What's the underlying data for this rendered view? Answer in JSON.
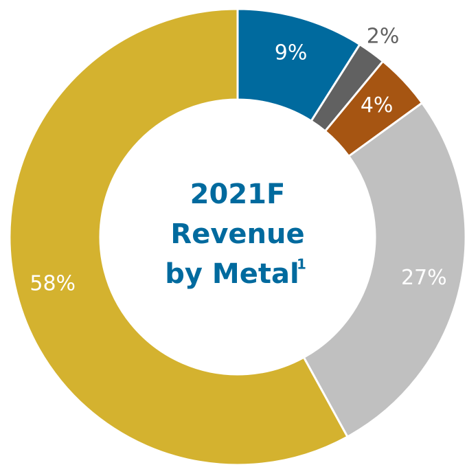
{
  "chart_data": {
    "type": "donut",
    "title_lines": [
      "2021F",
      "Revenue",
      "by Metal"
    ],
    "title_footnote": "1",
    "categories": [
      null,
      null,
      null,
      null,
      null
    ],
    "values": [
      9,
      2,
      4,
      27,
      58
    ],
    "value_labels": [
      "9%",
      "2%",
      "4%",
      "27%",
      "58%"
    ],
    "colors": [
      "#006a9e",
      "#616161",
      "#a65512",
      "#c0c0c0",
      "#d4b22f"
    ]
  }
}
